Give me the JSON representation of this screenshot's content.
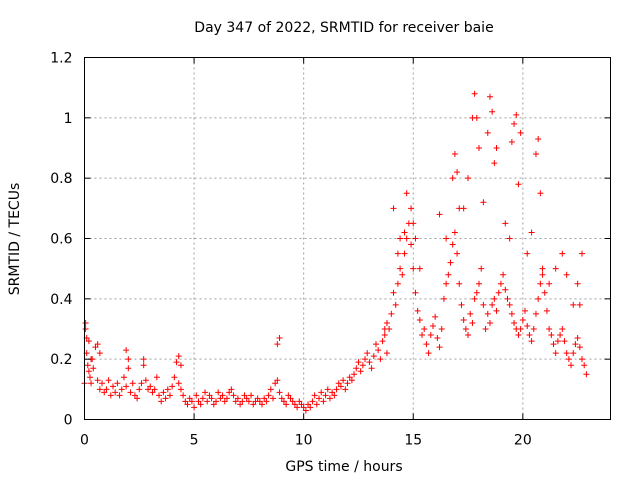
{
  "chart_data": {
    "type": "scatter",
    "title": "Day 347 of 2022, SRMTID for receiver baie",
    "xlabel": "GPS time / hours",
    "ylabel": "SRMTID / TECUs",
    "xlim": [
      0,
      24
    ],
    "ylim": [
      0,
      1.2
    ],
    "x_ticks": [
      0,
      5,
      10,
      15,
      20
    ],
    "x_tick_labels": [
      "0",
      "5",
      "10",
      "15",
      "20"
    ],
    "y_ticks": [
      0,
      0.2,
      0.4,
      0.6,
      0.8,
      1.0,
      1.2
    ],
    "y_tick_labels": [
      "0",
      "0.2",
      "0.4",
      "0.6",
      "0.8",
      "1",
      "1.2"
    ],
    "grid": true,
    "marker": "plus",
    "color": "#ff0000",
    "series": [
      {
        "name": "SRMTID",
        "x": [
          0.0,
          0.05,
          0.1,
          0.15,
          0.2,
          0.25,
          0.3,
          0.35,
          0.4,
          0.5,
          0.6,
          0.7,
          0.8,
          0.9,
          1.0,
          1.1,
          1.2,
          1.3,
          1.4,
          1.5,
          1.6,
          1.7,
          1.8,
          1.9,
          2.0,
          2.1,
          2.2,
          2.3,
          2.4,
          2.5,
          2.6,
          2.7,
          2.8,
          2.9,
          3.0,
          3.1,
          3.2,
          3.3,
          3.4,
          3.5,
          3.6,
          3.7,
          3.8,
          3.9,
          4.0,
          4.1,
          4.2,
          4.3,
          4.4,
          4.5,
          4.6,
          4.7,
          4.8,
          4.9,
          5.0,
          5.1,
          5.2,
          5.3,
          5.4,
          5.5,
          5.6,
          5.7,
          5.8,
          5.9,
          6.0,
          6.1,
          6.2,
          6.3,
          6.4,
          6.5,
          6.6,
          6.7,
          6.8,
          6.9,
          7.0,
          7.1,
          7.2,
          7.3,
          7.4,
          7.5,
          7.6,
          7.7,
          7.8,
          7.9,
          8.0,
          8.1,
          8.2,
          8.3,
          8.4,
          8.5,
          8.6,
          8.7,
          8.8,
          8.9,
          9.0,
          9.1,
          9.2,
          9.3,
          9.4,
          9.5,
          9.6,
          9.7,
          9.8,
          9.9,
          10.0,
          10.1,
          10.2,
          10.3,
          10.4,
          10.5,
          10.6,
          10.7,
          10.8,
          10.9,
          11.0,
          11.1,
          11.2,
          11.3,
          11.4,
          11.5,
          11.6,
          11.7,
          11.8,
          11.9,
          12.0,
          12.1,
          12.2,
          12.3,
          12.4,
          12.5,
          12.6,
          12.7,
          12.8,
          12.9,
          13.0,
          13.1,
          13.2,
          13.3,
          13.4,
          13.5,
          13.6,
          13.7,
          13.8,
          13.9,
          14.0,
          14.1,
          14.2,
          14.3,
          14.4,
          14.5,
          14.6,
          14.7,
          14.8,
          14.9,
          15.0,
          15.1,
          15.2,
          15.3,
          15.4,
          15.5,
          15.6,
          15.7,
          15.8,
          15.9,
          16.0,
          16.1,
          16.2,
          16.3,
          16.4,
          16.5,
          16.6,
          16.7,
          16.8,
          16.9,
          17.0,
          17.1,
          17.2,
          17.3,
          17.4,
          17.5,
          17.6,
          17.7,
          17.8,
          17.9,
          18.0,
          18.1,
          18.2,
          18.3,
          18.4,
          18.5,
          18.6,
          18.7,
          18.8,
          18.9,
          19.0,
          19.1,
          19.2,
          19.3,
          19.4,
          19.5,
          19.6,
          19.7,
          19.8,
          19.9,
          20.0,
          20.1,
          20.2,
          20.3,
          20.4,
          20.5,
          20.6,
          20.7,
          20.8,
          20.9,
          21.0,
          21.1,
          21.2,
          21.3,
          21.4,
          21.5,
          21.6,
          21.7,
          21.8,
          21.9,
          22.0,
          22.1,
          22.2,
          22.3,
          22.4,
          22.5,
          22.6,
          22.7,
          22.8,
          22.9,
          0.05,
          0.1,
          0.2,
          0.3,
          0.6,
          0.7,
          1.9,
          2.0,
          2.7,
          4.3,
          4.4,
          8.8,
          8.9,
          13.7,
          13.8,
          14.1,
          14.3,
          14.4,
          14.6,
          14.7,
          14.9,
          15.0,
          15.1,
          15.3,
          16.8,
          16.9,
          17.0,
          17.1,
          17.7,
          17.8,
          17.9,
          18.0,
          18.4,
          18.5,
          18.6,
          18.7,
          18.8,
          19.5,
          19.6,
          19.7,
          19.8,
          19.9,
          20.6,
          20.7,
          20.8,
          20.9,
          22.5,
          22.6,
          22.7,
          16.2,
          16.5,
          17.3,
          17.5,
          18.2,
          19.2,
          19.4,
          20.2,
          20.4,
          21.2,
          21.5,
          21.8,
          22.0,
          22.3
        ],
        "y": [
          0.12,
          0.3,
          0.22,
          0.18,
          0.16,
          0.14,
          0.12,
          0.2,
          0.17,
          0.24,
          0.13,
          0.1,
          0.12,
          0.09,
          0.1,
          0.13,
          0.08,
          0.11,
          0.09,
          0.12,
          0.08,
          0.1,
          0.14,
          0.11,
          0.17,
          0.09,
          0.12,
          0.08,
          0.07,
          0.1,
          0.12,
          0.18,
          0.13,
          0.1,
          0.11,
          0.09,
          0.1,
          0.14,
          0.08,
          0.06,
          0.09,
          0.07,
          0.1,
          0.08,
          0.11,
          0.14,
          0.19,
          0.12,
          0.1,
          0.08,
          0.06,
          0.05,
          0.07,
          0.06,
          0.04,
          0.08,
          0.06,
          0.05,
          0.07,
          0.09,
          0.06,
          0.08,
          0.07,
          0.05,
          0.06,
          0.09,
          0.07,
          0.08,
          0.06,
          0.07,
          0.09,
          0.1,
          0.08,
          0.06,
          0.07,
          0.05,
          0.06,
          0.08,
          0.07,
          0.06,
          0.08,
          0.05,
          0.06,
          0.07,
          0.06,
          0.05,
          0.07,
          0.06,
          0.08,
          0.1,
          0.07,
          0.12,
          0.13,
          0.09,
          0.07,
          0.06,
          0.05,
          0.08,
          0.07,
          0.06,
          0.05,
          0.04,
          0.06,
          0.05,
          0.04,
          0.03,
          0.05,
          0.04,
          0.06,
          0.08,
          0.05,
          0.07,
          0.09,
          0.06,
          0.08,
          0.1,
          0.07,
          0.09,
          0.08,
          0.1,
          0.12,
          0.11,
          0.13,
          0.1,
          0.12,
          0.14,
          0.13,
          0.15,
          0.17,
          0.19,
          0.16,
          0.18,
          0.2,
          0.22,
          0.19,
          0.17,
          0.21,
          0.25,
          0.23,
          0.2,
          0.26,
          0.28,
          0.22,
          0.3,
          0.35,
          0.42,
          0.38,
          0.45,
          0.5,
          0.48,
          0.55,
          0.6,
          0.65,
          0.58,
          0.5,
          0.42,
          0.36,
          0.33,
          0.28,
          0.3,
          0.25,
          0.22,
          0.28,
          0.31,
          0.34,
          0.27,
          0.24,
          0.3,
          0.4,
          0.45,
          0.48,
          0.52,
          0.58,
          0.62,
          0.55,
          0.45,
          0.38,
          0.33,
          0.3,
          0.28,
          0.35,
          0.32,
          0.4,
          0.42,
          0.45,
          0.5,
          0.38,
          0.3,
          0.35,
          0.32,
          0.38,
          0.4,
          0.36,
          0.42,
          0.45,
          0.48,
          0.43,
          0.4,
          0.38,
          0.35,
          0.32,
          0.3,
          0.28,
          0.3,
          0.33,
          0.36,
          0.31,
          0.28,
          0.26,
          0.3,
          0.35,
          0.4,
          0.45,
          0.5,
          0.42,
          0.36,
          0.3,
          0.28,
          0.25,
          0.22,
          0.26,
          0.28,
          0.3,
          0.26,
          0.22,
          0.2,
          0.18,
          0.22,
          0.25,
          0.27,
          0.24,
          0.2,
          0.18,
          0.15,
          0.32,
          0.27,
          0.26,
          0.2,
          0.25,
          0.22,
          0.23,
          0.2,
          0.2,
          0.21,
          0.18,
          0.25,
          0.27,
          0.3,
          0.32,
          0.7,
          0.55,
          0.6,
          0.62,
          0.75,
          0.7,
          0.65,
          0.6,
          0.5,
          0.8,
          0.88,
          0.82,
          0.7,
          1.0,
          1.08,
          1.0,
          0.9,
          0.95,
          1.07,
          1.02,
          0.85,
          0.9,
          0.92,
          0.98,
          1.01,
          0.78,
          0.95,
          0.88,
          0.93,
          0.75,
          0.48,
          0.45,
          0.38,
          0.55,
          0.68,
          0.6,
          0.7,
          0.8,
          0.72,
          0.65,
          0.6,
          0.55,
          0.62,
          0.45,
          0.5,
          0.55,
          0.48,
          0.38
        ]
      }
    ]
  }
}
